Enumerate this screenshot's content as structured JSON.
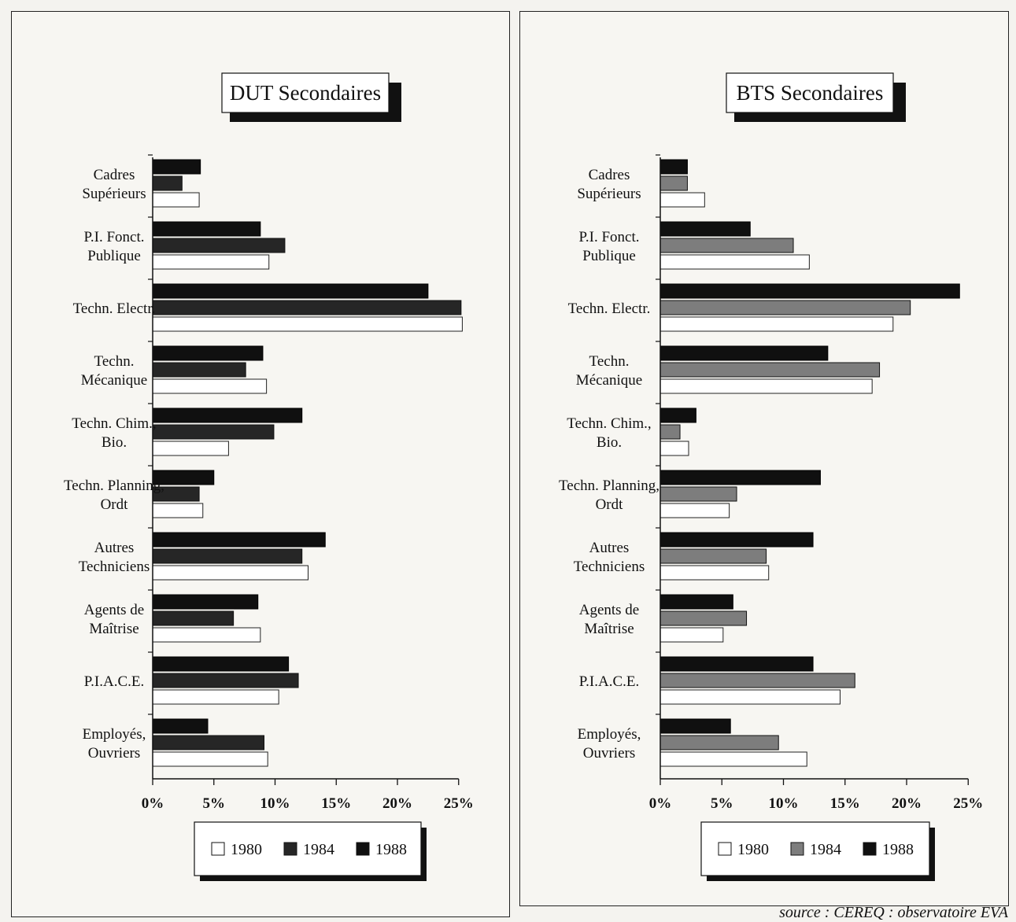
{
  "source": "source : CEREQ : observatoire EVA",
  "colors": {
    "y1980": "#ffffff",
    "y1984": "#1e1e1e",
    "y1984_right": "#8a8a8a",
    "y1988": "#111111"
  },
  "chart_data": [
    {
      "type": "bar",
      "orientation": "horizontal",
      "title": "DUT Secondaires",
      "categories": [
        "Cadres\nSupérieurs",
        "P.I. Fonct.\nPublique",
        "Techn.   Electr.",
        "Techn.\nMécanique",
        "Techn.   Chim.,\nBio.",
        "Techn. Planning,\nOrdt",
        "Autres\nTechniciens",
        "Agents de\nMaîtrise",
        "P.I.A.C.E.",
        "Employés,\nOuvriers"
      ],
      "series": [
        {
          "name": "1980",
          "values": [
            3.8,
            9.5,
            25.3,
            9.3,
            6.2,
            4.1,
            12.7,
            8.8,
            10.3,
            9.4
          ]
        },
        {
          "name": "1984",
          "values": [
            2.4,
            10.8,
            25.2,
            7.6,
            9.9,
            3.8,
            12.2,
            6.6,
            11.9,
            9.1
          ]
        },
        {
          "name": "1988",
          "values": [
            3.9,
            8.8,
            22.5,
            9.0,
            12.2,
            5.0,
            14.1,
            8.6,
            11.1,
            4.5
          ]
        }
      ],
      "xlim": [
        0,
        25
      ],
      "ticks": [
        "0%",
        "5%",
        "10%",
        "15%",
        "20%",
        "25%"
      ],
      "legend": [
        "1980",
        "1984",
        "1988"
      ]
    },
    {
      "type": "bar",
      "orientation": "horizontal",
      "title": "BTS Secondaires",
      "categories": [
        "Cadres\nSupérieurs",
        "P.I. Fonct.\nPublique",
        "Techn.   Electr.",
        "Techn.\nMécanique",
        "Techn.   Chim.,\nBio.",
        "Techn. Planning,\nOrdt",
        "Autres\nTechniciens",
        "Agents de\nMaîtrise",
        "P.I.A.C.E.",
        "Employés,\nOuvriers"
      ],
      "series": [
        {
          "name": "1980",
          "values": [
            3.6,
            12.1,
            18.9,
            17.2,
            2.3,
            5.6,
            8.8,
            5.1,
            14.6,
            11.9
          ]
        },
        {
          "name": "1984",
          "values": [
            2.2,
            10.8,
            20.3,
            17.8,
            1.6,
            6.2,
            8.6,
            7.0,
            15.8,
            9.6
          ]
        },
        {
          "name": "1988",
          "values": [
            2.2,
            7.3,
            24.3,
            13.6,
            2.9,
            13.0,
            12.4,
            5.9,
            12.4,
            5.7
          ]
        }
      ],
      "xlim": [
        0,
        25
      ],
      "ticks": [
        "0%",
        "5%",
        "10%",
        "15%",
        "20%",
        "25%"
      ],
      "legend": [
        "1980",
        "1984",
        "1988"
      ]
    }
  ]
}
